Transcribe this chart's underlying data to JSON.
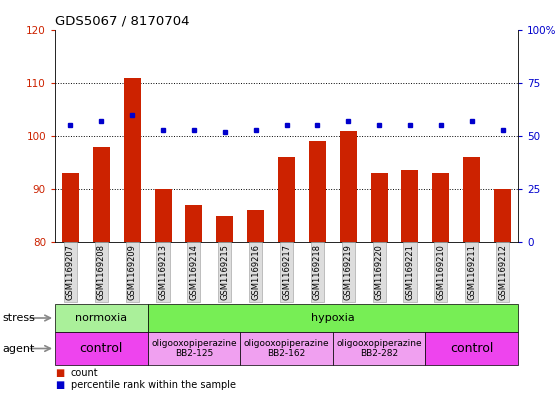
{
  "title": "GDS5067 / 8170704",
  "samples": [
    "GSM1169207",
    "GSM1169208",
    "GSM1169209",
    "GSM1169213",
    "GSM1169214",
    "GSM1169215",
    "GSM1169216",
    "GSM1169217",
    "GSM1169218",
    "GSM1169219",
    "GSM1169220",
    "GSM1169221",
    "GSM1169210",
    "GSM1169211",
    "GSM1169212"
  ],
  "counts": [
    93,
    98,
    111,
    90,
    87,
    85,
    86,
    96,
    99,
    101,
    93,
    93.5,
    93,
    96,
    90
  ],
  "percentile_ranks": [
    55,
    57,
    60,
    53,
    53,
    52,
    53,
    55,
    55,
    57,
    55,
    55,
    55,
    57,
    53
  ],
  "ylim_left": [
    80,
    120
  ],
  "ylim_right": [
    0,
    100
  ],
  "yticks_left": [
    80,
    90,
    100,
    110,
    120
  ],
  "yticks_right": [
    0,
    25,
    50,
    75,
    100
  ],
  "bar_color": "#cc2200",
  "dot_color": "#0000cc",
  "stress_groups": [
    {
      "label": "normoxia",
      "start": 0,
      "end": 3,
      "color": "#aaf09a"
    },
    {
      "label": "hypoxia",
      "start": 3,
      "end": 15,
      "color": "#77ee55"
    }
  ],
  "agent_groups": [
    {
      "label": "control",
      "start": 0,
      "end": 3,
      "color": "#ee44ee",
      "fontsize": 9
    },
    {
      "label": "oligooxopiperazine\nBB2-125",
      "start": 3,
      "end": 6,
      "color": "#f0a0f0",
      "fontsize": 6.5
    },
    {
      "label": "oligooxopiperazine\nBB2-162",
      "start": 6,
      "end": 9,
      "color": "#f0a0f0",
      "fontsize": 6.5
    },
    {
      "label": "oligooxopiperazine\nBB2-282",
      "start": 9,
      "end": 12,
      "color": "#f0a0f0",
      "fontsize": 6.5
    },
    {
      "label": "control",
      "start": 12,
      "end": 15,
      "color": "#ee44ee",
      "fontsize": 9
    }
  ],
  "legend_items": [
    {
      "label": "count",
      "color": "#cc2200"
    },
    {
      "label": "percentile rank within the sample",
      "color": "#0000cc"
    }
  ],
  "fig_bg": "#ffffff",
  "plot_bg": "#ffffff",
  "tick_bg": "#dddddd"
}
